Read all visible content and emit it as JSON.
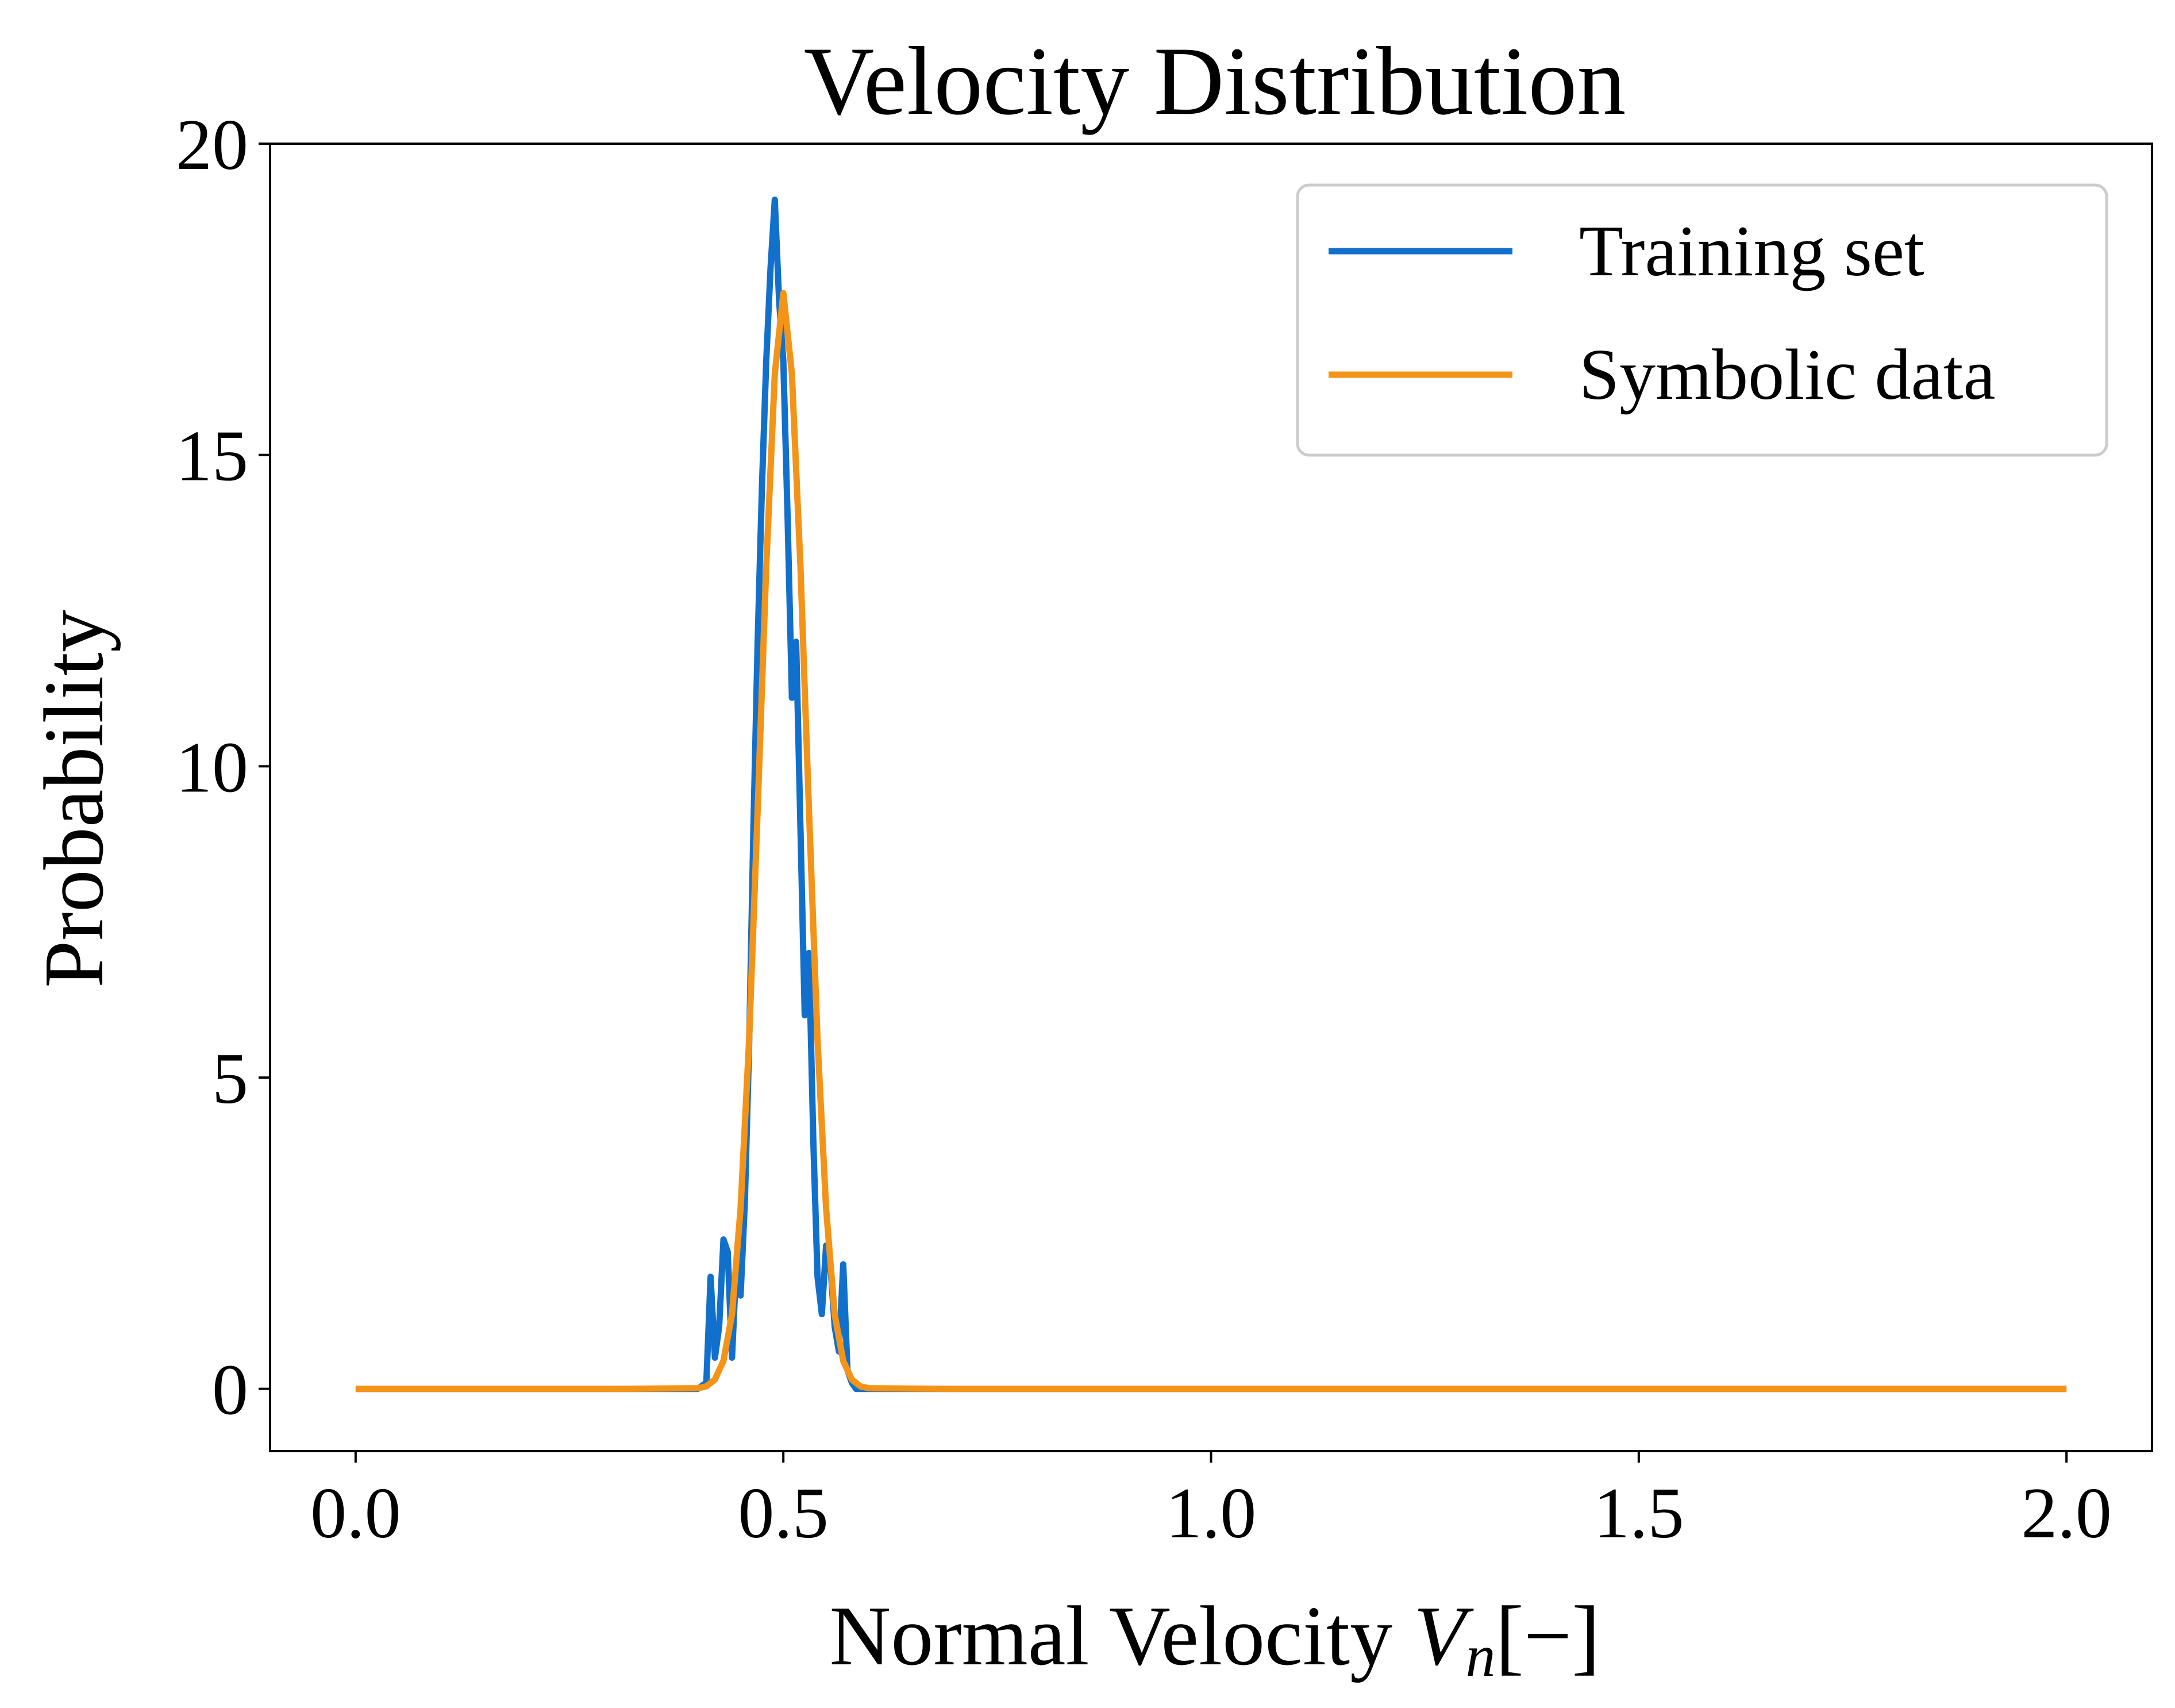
{
  "chart_data": {
    "type": "line",
    "title": "Velocity Distribution",
    "xlabel": {
      "main": "Normal Velocity ",
      "var": "V",
      "sub": "n",
      "unit": "[−]"
    },
    "ylabel": "Probability",
    "xlim": [
      -0.1,
      2.1
    ],
    "ylim": [
      -1,
      20
    ],
    "xticks": [
      0.0,
      0.5,
      1.0,
      1.5,
      2.0
    ],
    "xtick_labels": [
      "0.0",
      "0.5",
      "1.0",
      "1.5",
      "2.0"
    ],
    "yticks": [
      0,
      5,
      10,
      15,
      20
    ],
    "ytick_labels": [
      "0",
      "5",
      "10",
      "15",
      "20"
    ],
    "grid": false,
    "legend_position": "top-right",
    "series": [
      {
        "name": "Training set",
        "color": "#1170cc",
        "x": [
          0.0,
          0.1,
          0.2,
          0.3,
          0.4,
          0.41,
          0.415,
          0.42,
          0.425,
          0.43,
          0.435,
          0.44,
          0.445,
          0.45,
          0.455,
          0.46,
          0.465,
          0.47,
          0.475,
          0.48,
          0.485,
          0.49,
          0.495,
          0.5,
          0.505,
          0.51,
          0.515,
          0.52,
          0.525,
          0.53,
          0.535,
          0.54,
          0.545,
          0.55,
          0.555,
          0.56,
          0.565,
          0.57,
          0.575,
          0.58,
          0.585,
          0.59,
          0.6,
          0.7,
          0.8,
          1.0,
          1.5,
          2.0
        ],
        "y": [
          0,
          0,
          0,
          0,
          0,
          0.1,
          1.8,
          0.5,
          1.0,
          2.4,
          2.2,
          0.5,
          2.0,
          1.5,
          3.0,
          5.5,
          9.0,
          12.0,
          14.5,
          16.5,
          18.0,
          19.1,
          17.5,
          16.5,
          14.0,
          11.1,
          12.0,
          9.0,
          6.0,
          7.0,
          4.0,
          1.8,
          1.2,
          2.3,
          2.0,
          1.0,
          0.6,
          2.0,
          0.3,
          0.1,
          0,
          0,
          0,
          0,
          0,
          0,
          0,
          0
        ]
      },
      {
        "name": "Symbolic data",
        "color": "#f39418",
        "x": [
          0.0,
          0.1,
          0.2,
          0.3,
          0.4,
          0.41,
          0.42,
          0.43,
          0.44,
          0.45,
          0.46,
          0.47,
          0.48,
          0.49,
          0.5,
          0.51,
          0.52,
          0.53,
          0.54,
          0.55,
          0.56,
          0.57,
          0.58,
          0.59,
          0.6,
          0.7,
          0.8,
          1.0,
          1.5,
          2.0
        ],
        "y": [
          0,
          0,
          0,
          0,
          0.01,
          0.04,
          0.15,
          0.45,
          1.2,
          2.9,
          5.6,
          9.3,
          13.2,
          16.3,
          17.6,
          16.3,
          13.2,
          9.3,
          5.6,
          2.9,
          1.2,
          0.45,
          0.15,
          0.04,
          0.01,
          0,
          0,
          0,
          0,
          0
        ]
      }
    ]
  }
}
